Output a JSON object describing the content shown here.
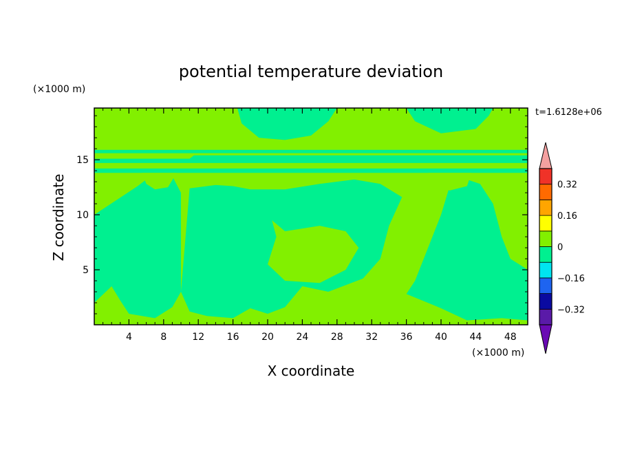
{
  "chart_data": {
    "type": "heatmap",
    "title": "potential temperature deviation",
    "xlabel": "X coordinate",
    "ylabel": "Z coordinate",
    "x_unit": "(×1000 m)",
    "y_unit": "(×1000 m)",
    "time_label": "t=1.6128e+06",
    "xlim": [
      0,
      50
    ],
    "ylim": [
      0,
      19.7
    ],
    "x_ticks": [
      4,
      8,
      12,
      16,
      20,
      24,
      28,
      32,
      36,
      40,
      44,
      48
    ],
    "y_ticks": [
      5,
      10,
      15
    ],
    "colorbar": {
      "levels": [
        -0.4,
        -0.32,
        -0.24,
        -0.16,
        -0.08,
        0,
        0.08,
        0.16,
        0.24,
        0.32,
        0.4
      ],
      "colors": [
        "#5a1aa8",
        "#0a0aa0",
        "#1e64f0",
        "#00e5f0",
        "#00f090",
        "#82f000",
        "#ffff00",
        "#ffa500",
        "#ff6a00",
        "#f03228"
      ],
      "under_color": "#6a0ab4",
      "over_color": "#f4a0a0",
      "tick_labels": [
        {
          "label": "0.32",
          "value": 0.32
        },
        {
          "label": "0.16",
          "value": 0.16
        },
        {
          "label": "0",
          "value": 0
        },
        {
          "label": "−0.16",
          "value": -0.16
        },
        {
          "label": "−0.32",
          "value": -0.32
        }
      ]
    },
    "field_colors": {
      "positive": "#82f000",
      "near_zero": "#00f090"
    },
    "regions": [
      {
        "level": "near_zero",
        "desc": "left column",
        "points": [
          [
            0,
            2
          ],
          [
            2,
            3.5
          ],
          [
            3,
            2.2
          ],
          [
            4,
            1.0
          ],
          [
            7,
            0.6
          ],
          [
            9,
            1.6
          ],
          [
            10,
            3
          ],
          [
            10,
            12
          ],
          [
            9,
            13.5
          ],
          [
            7,
            13.8
          ],
          [
            5,
            12.6
          ],
          [
            0,
            10
          ]
        ]
      },
      {
        "level": "near_zero",
        "desc": "center plume",
        "points": [
          [
            10,
            3
          ],
          [
            11,
            1.2
          ],
          [
            13,
            0.8
          ],
          [
            16,
            0.6
          ],
          [
            18,
            1.5
          ],
          [
            20,
            1.0
          ],
          [
            22,
            1.6
          ],
          [
            24,
            3.5
          ],
          [
            27,
            3.0
          ],
          [
            31,
            4.2
          ],
          [
            33,
            6
          ],
          [
            34,
            9
          ],
          [
            35.5,
            11.6
          ],
          [
            33,
            12.8
          ],
          [
            30,
            13.2
          ],
          [
            26,
            12.8
          ],
          [
            22,
            12.3
          ],
          [
            18,
            12.3
          ],
          [
            16,
            12.6
          ],
          [
            14,
            12.7
          ],
          [
            11,
            12.4
          ]
        ]
      },
      {
        "level": "near_zero",
        "desc": "right column",
        "points": [
          [
            43,
            0.4
          ],
          [
            47,
            0.6
          ],
          [
            50,
            0.4
          ],
          [
            50,
            5
          ],
          [
            48,
            6
          ],
          [
            47,
            8
          ],
          [
            46,
            11
          ],
          [
            44.5,
            12.8
          ],
          [
            43,
            13.2
          ],
          [
            41,
            12.6
          ],
          [
            40,
            10
          ],
          [
            39,
            8
          ],
          [
            38,
            6
          ],
          [
            37,
            4
          ],
          [
            36,
            2.8
          ],
          [
            40,
            1.5
          ]
        ]
      },
      {
        "level": "near_zero",
        "desc": "upper band",
        "points": [
          [
            0,
            13.8
          ],
          [
            50,
            13.8
          ],
          [
            50,
            15.9
          ],
          [
            0,
            15.9
          ]
        ]
      },
      {
        "level": "near_zero",
        "desc": "upper dome",
        "points": [
          [
            16.5,
            19.7
          ],
          [
            17,
            18.3
          ],
          [
            19,
            17.0
          ],
          [
            22,
            16.8
          ],
          [
            25,
            17.2
          ],
          [
            27,
            18.5
          ],
          [
            28,
            19.7
          ]
        ]
      },
      {
        "level": "near_zero",
        "desc": "top right",
        "points": [
          [
            36,
            19.7
          ],
          [
            37,
            18.5
          ],
          [
            40,
            17.4
          ],
          [
            44,
            17.8
          ],
          [
            45.5,
            19.0
          ],
          [
            46,
            19.7
          ]
        ]
      },
      {
        "level": "positive",
        "desc": "center bubble",
        "points": [
          [
            20.5,
            9.5
          ],
          [
            22,
            8.5
          ],
          [
            26,
            9.0
          ],
          [
            29,
            8.5
          ],
          [
            30.5,
            7
          ],
          [
            29,
            5
          ],
          [
            26,
            3.8
          ],
          [
            22,
            4.0
          ],
          [
            20,
            5.5
          ],
          [
            21,
            8.0
          ]
        ]
      },
      {
        "level": "positive",
        "desc": "band stripe 1",
        "points": [
          [
            0,
            14.2
          ],
          [
            50,
            14.2
          ],
          [
            50,
            14.7
          ],
          [
            0,
            14.7
          ]
        ]
      },
      {
        "level": "positive",
        "desc": "band stripe 2",
        "points": [
          [
            0,
            15.1
          ],
          [
            11,
            15.1
          ],
          [
            11.5,
            15.4
          ],
          [
            50,
            15.4
          ],
          [
            50,
            15.6
          ],
          [
            0,
            15.6
          ]
        ]
      },
      {
        "level": "positive",
        "desc": "hump left",
        "points": [
          [
            5.5,
            13.8
          ],
          [
            6,
            12.8
          ],
          [
            7,
            12.3
          ],
          [
            8.5,
            12.5
          ],
          [
            9.5,
            13.8
          ]
        ]
      },
      {
        "level": "positive",
        "desc": "hump right",
        "points": [
          [
            38.5,
            13.8
          ],
          [
            39,
            12.6
          ],
          [
            41,
            12.2
          ],
          [
            43,
            12.6
          ],
          [
            43.5,
            13.8
          ]
        ]
      }
    ]
  }
}
